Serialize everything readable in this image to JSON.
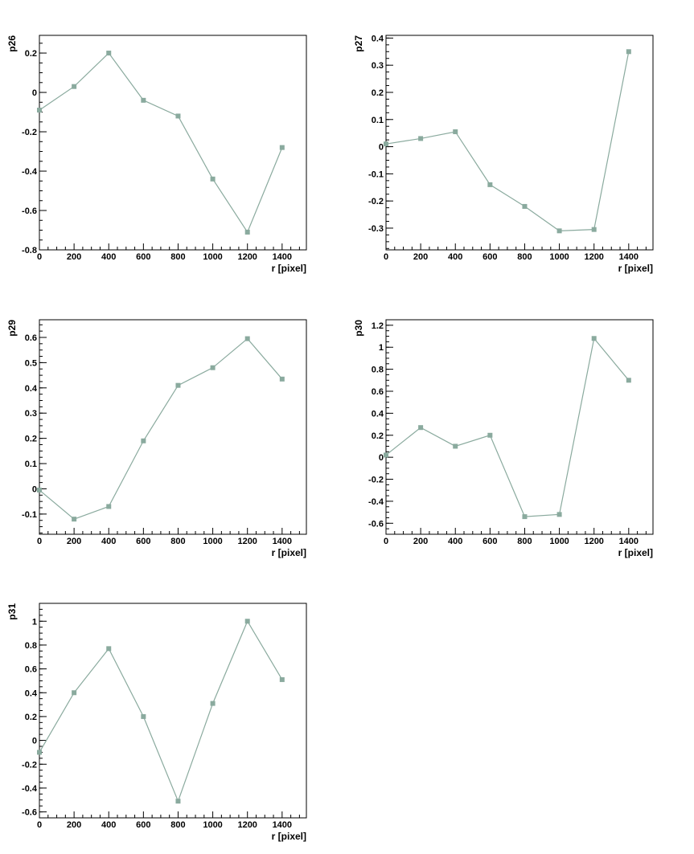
{
  "chart_data": [
    {
      "type": "line",
      "xlabel": "r [pixel]",
      "ylabel": "p26",
      "xlim": [
        0,
        1540
      ],
      "ylim": [
        -0.8,
        0.29
      ],
      "xticks": [
        0,
        200,
        400,
        600,
        800,
        1000,
        1200,
        1400
      ],
      "yticks": [
        -0.8,
        -0.6,
        -0.4,
        -0.2,
        0,
        0.2
      ],
      "ytick_labels": [
        "-0.8",
        "-0.6",
        "-0.4",
        "-0.2",
        "0",
        "0.2"
      ],
      "x": [
        0,
        200,
        400,
        600,
        800,
        1000,
        1200,
        1400
      ],
      "y": [
        -0.09,
        0.03,
        0.2,
        -0.04,
        -0.12,
        -0.44,
        -0.71,
        -0.28
      ],
      "color": "#8aaa9e"
    },
    {
      "type": "line",
      "xlabel": "r [pixel]",
      "ylabel": "p27",
      "xlim": [
        0,
        1540
      ],
      "ylim": [
        -0.38,
        0.41
      ],
      "xticks": [
        0,
        200,
        400,
        600,
        800,
        1000,
        1200,
        1400
      ],
      "yticks": [
        -0.3,
        -0.2,
        -0.1,
        0,
        0.1,
        0.2,
        0.3,
        0.4
      ],
      "ytick_labels": [
        "-0.3",
        "-0.2",
        "-0.1",
        "0",
        "0.1",
        "0.2",
        "0.3",
        "0.4"
      ],
      "x": [
        0,
        200,
        400,
        600,
        800,
        1000,
        1200,
        1400
      ],
      "y": [
        0.01,
        0.03,
        0.055,
        -0.14,
        -0.22,
        -0.31,
        -0.305,
        0.35
      ],
      "color": "#8aaa9e"
    },
    {
      "type": "line",
      "xlabel": "r [pixel]",
      "ylabel": "p29",
      "xlim": [
        0,
        1540
      ],
      "ylim": [
        -0.18,
        0.67
      ],
      "xticks": [
        0,
        200,
        400,
        600,
        800,
        1000,
        1200,
        1400
      ],
      "yticks": [
        -0.1,
        0,
        0.1,
        0.2,
        0.3,
        0.4,
        0.5,
        0.6
      ],
      "ytick_labels": [
        "-0.1",
        "0",
        "0.1",
        "0.2",
        "0.3",
        "0.4",
        "0.5",
        "0.6"
      ],
      "x": [
        0,
        200,
        400,
        600,
        800,
        1000,
        1200,
        1400
      ],
      "y": [
        -0.005,
        -0.12,
        -0.07,
        0.19,
        0.41,
        0.48,
        0.595,
        0.435
      ],
      "color": "#8aaa9e"
    },
    {
      "type": "line",
      "xlabel": "r [pixel]",
      "ylabel": "p30",
      "xlim": [
        0,
        1540
      ],
      "ylim": [
        -0.7,
        1.25
      ],
      "xticks": [
        0,
        200,
        400,
        600,
        800,
        1000,
        1200,
        1400
      ],
      "yticks": [
        -0.6,
        -0.4,
        -0.2,
        0,
        0.2,
        0.4,
        0.6,
        0.8,
        1,
        1.2
      ],
      "ytick_labels": [
        "-0.6",
        "-0.4",
        "-0.2",
        "0",
        "0.2",
        "0.4",
        "0.6",
        "0.8",
        "1",
        "1.2"
      ],
      "x": [
        0,
        200,
        400,
        600,
        800,
        1000,
        1200,
        1400
      ],
      "y": [
        0.02,
        0.27,
        0.1,
        0.2,
        -0.54,
        -0.52,
        1.08,
        0.7
      ],
      "color": "#8aaa9e"
    },
    {
      "type": "line",
      "xlabel": "r [pixel]",
      "ylabel": "p31",
      "xlim": [
        0,
        1540
      ],
      "ylim": [
        -0.65,
        1.15
      ],
      "xticks": [
        0,
        200,
        400,
        600,
        800,
        1000,
        1200,
        1400
      ],
      "yticks": [
        -0.6,
        -0.4,
        -0.2,
        0,
        0.2,
        0.4,
        0.6,
        0.8,
        1
      ],
      "ytick_labels": [
        "-0.6",
        "-0.4",
        "-0.2",
        "0",
        "0.2",
        "0.4",
        "0.6",
        "0.8",
        "1"
      ],
      "x": [
        0,
        200,
        400,
        600,
        800,
        1000,
        1200,
        1400
      ],
      "y": [
        -0.1,
        0.4,
        0.77,
        0.2,
        -0.51,
        0.31,
        1.0,
        0.51
      ],
      "color": "#8aaa9e"
    }
  ]
}
